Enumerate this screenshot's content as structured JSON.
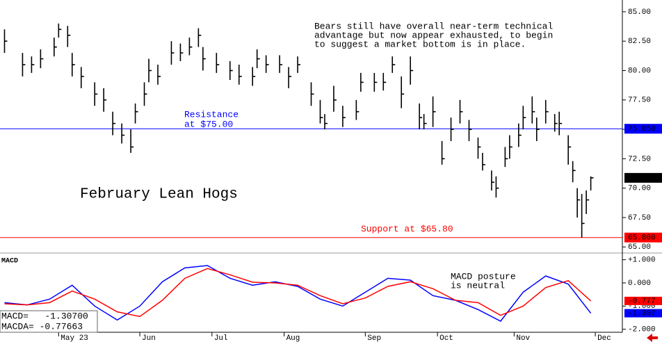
{
  "chart_data": [
    {
      "type": "ohlc",
      "title": "February Lean Hogs",
      "note": [
        "Bears still have overall near-term technical",
        "advantage but now appear exhausted, to begin",
        "to suggest a market bottom is in place."
      ],
      "x": [
        0,
        4,
        6,
        8,
        11,
        12,
        14,
        15,
        17,
        20,
        22,
        24,
        26,
        28,
        29,
        31,
        32,
        34,
        37,
        39,
        41,
        43,
        44,
        47,
        50,
        52,
        55,
        56,
        58,
        61,
        63,
        65,
        68,
        70,
        71,
        73,
        75,
        78,
        79,
        82,
        84,
        86,
        88,
        90,
        92,
        93,
        95,
        97,
        99,
        101,
        103,
        105,
        106,
        108,
        109,
        111,
        112,
        114,
        115,
        117,
        118,
        120,
        122,
        123,
        125,
        126,
        127,
        128,
        129,
        130
      ],
      "high": [
        83.5,
        81.5,
        81.2,
        81.8,
        82.8,
        84,
        83.8,
        81.5,
        80.3,
        79,
        78.5,
        76.5,
        75.5,
        75,
        77.2,
        79,
        81,
        80.5,
        82.5,
        82.3,
        82.8,
        83.6,
        82,
        81.5,
        80.8,
        80.5,
        80.3,
        81.8,
        81.3,
        81.3,
        80.3,
        81.2,
        79,
        77.5,
        76.3,
        78.7,
        77,
        77.5,
        79.8,
        79.8,
        79.8,
        81.2,
        79.5,
        81.2,
        77.2,
        76.3,
        77.8,
        74,
        76,
        77.5,
        75.8,
        74.3,
        73,
        71.5,
        71,
        73.5,
        74.5,
        75.5,
        77,
        77.8,
        76,
        77.5,
        76.3,
        76.5,
        74.5,
        72.3,
        70,
        69.5,
        69.8,
        71
      ],
      "low": [
        81.5,
        79.5,
        79.8,
        80.2,
        81.2,
        82.8,
        82,
        79.5,
        78.5,
        77,
        76.5,
        74.5,
        73.8,
        73,
        75.5,
        77,
        79,
        78.8,
        80.5,
        80.8,
        81.3,
        82,
        80,
        79.8,
        79.2,
        78.8,
        78.7,
        80.2,
        79.8,
        79.8,
        78.5,
        79.8,
        77,
        75.5,
        75,
        76.5,
        75.2,
        75.8,
        78.2,
        78.2,
        78.3,
        79.8,
        76.8,
        78.8,
        75,
        75,
        75.2,
        72,
        74,
        75.5,
        74,
        72.5,
        71.5,
        69.8,
        69.2,
        71.8,
        72.5,
        73.5,
        75,
        75.5,
        74,
        75.5,
        74.8,
        74.5,
        72,
        70.5,
        67.5,
        65.8,
        67.8,
        69.8
      ],
      "close": [
        82.5,
        80.5,
        80.5,
        81,
        82,
        83.5,
        83,
        80.5,
        79.5,
        78,
        77.5,
        75.5,
        74.5,
        73.5,
        76.5,
        78,
        80,
        79.5,
        81.5,
        81.5,
        82,
        83,
        81,
        80.5,
        80,
        79.5,
        79.5,
        81,
        80.5,
        80.5,
        79.5,
        80.5,
        78,
        76,
        75.5,
        77.5,
        76,
        76.5,
        79,
        79,
        79,
        80.5,
        78,
        80,
        76,
        75.5,
        76.5,
        72.5,
        75,
        76.5,
        75,
        73.5,
        72,
        70.5,
        70,
        72.5,
        73.5,
        74.5,
        76,
        76.5,
        75,
        76.5,
        75.5,
        75.5,
        73.5,
        71.5,
        69,
        67,
        69,
        70.875
      ],
      "close_label": "70.875",
      "color": "#000000",
      "levels": [
        {
          "value": 75.05,
          "label": "75.050",
          "color": "#0000ff",
          "text": [
            "Resistance",
            "at $75.00"
          ]
        },
        {
          "value": 65.8,
          "label": "65.800",
          "color": "#ff0000",
          "text": [
            "Support at $65.80"
          ]
        }
      ],
      "xlim": [
        -1,
        137
      ],
      "xticks": [
        {
          "value": 12,
          "label": "May 23"
        },
        {
          "value": 30,
          "label": "Jun"
        },
        {
          "value": 46,
          "label": "Jul"
        },
        {
          "value": 62,
          "label": "Aug"
        },
        {
          "value": 80,
          "label": "Sep"
        },
        {
          "value": 96,
          "label": "Oct"
        },
        {
          "value": 113,
          "label": "Nov"
        },
        {
          "value": 131,
          "label": "Dec"
        }
      ],
      "ylim": [
        64.6,
        86.0
      ],
      "yticks": [
        {
          "value": 65,
          "label": "65.00"
        },
        {
          "value": 67.5,
          "label": "67.50"
        },
        {
          "value": 70,
          "label": "70.00"
        },
        {
          "value": 72.5,
          "label": "72.50"
        },
        {
          "value": 75,
          "label": "75.00"
        },
        {
          "value": 77.5,
          "label": "77.50"
        },
        {
          "value": 80,
          "label": "80.00"
        },
        {
          "value": 82.5,
          "label": "82.50"
        },
        {
          "value": 85,
          "label": "85.00"
        }
      ]
    },
    {
      "type": "line",
      "title": "MACD",
      "note": [
        "MACD posture",
        "is neutral"
      ],
      "x": [
        0,
        5,
        10,
        15,
        20,
        25,
        30,
        35,
        40,
        45,
        50,
        55,
        60,
        65,
        70,
        75,
        80,
        85,
        90,
        95,
        100,
        105,
        110,
        115,
        120,
        125,
        130
      ],
      "series": [
        {
          "color": "#0000ff",
          "readout": "MACD=   -1.30700",
          "last_label": "-1.307",
          "values": [
            -0.85,
            -0.95,
            -0.7,
            -0.1,
            -1,
            -1.6,
            -1.0,
            0.05,
            0.65,
            0.75,
            0.2,
            -0.1,
            0.05,
            -0.15,
            -0.7,
            -1.0,
            -0.4,
            0.2,
            0.12,
            -0.55,
            -0.75,
            -1.15,
            -1.65,
            -0.4,
            0.3,
            -0.05,
            -1.307
          ]
        },
        {
          "color": "#ff0000",
          "readout": "MACDA= -0.77663",
          "last_label": "-0.777",
          "values": [
            -0.9,
            -0.95,
            -0.85,
            -0.35,
            -0.7,
            -1.25,
            -1.45,
            -0.75,
            0.2,
            0.62,
            0.35,
            0.03,
            0.0,
            -0.1,
            -0.55,
            -0.9,
            -0.65,
            -0.15,
            0.05,
            -0.25,
            -0.75,
            -0.85,
            -1.4,
            -1.0,
            -0.2,
            0.1,
            -0.77663
          ]
        }
      ],
      "xlim": [
        -1,
        137
      ],
      "ylim": [
        -2.13,
        1.17
      ],
      "yticks": [
        {
          "value": 1,
          "label": "+1.000"
        },
        {
          "value": 0,
          "label": "0.000"
        },
        {
          "value": -1,
          "label": "-1.000"
        },
        {
          "value": -2,
          "label": "-2.000"
        }
      ]
    }
  ]
}
